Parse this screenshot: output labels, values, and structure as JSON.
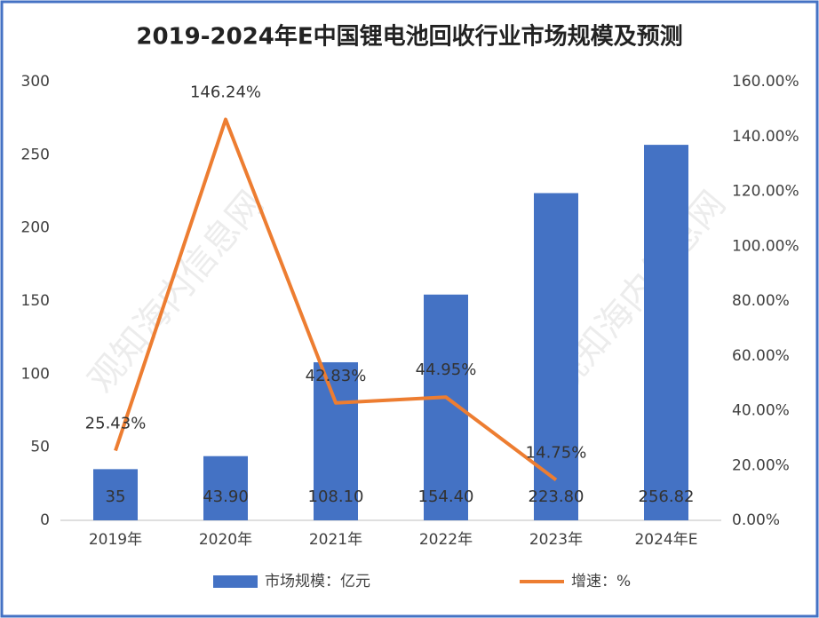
{
  "chart_data": {
    "type": "bar",
    "title": "2019-2024年E中国锂电池回收行业市场规模及预测",
    "watermark": "观知海内信息网",
    "categories": [
      "2019年",
      "2020年",
      "2021年",
      "2022年",
      "2023年",
      "2024年E"
    ],
    "series": [
      {
        "name": "市场规模：亿元",
        "type": "bar",
        "color": "#4472c4",
        "axis": "y",
        "values": [
          35,
          43.9,
          108.1,
          154.4,
          223.8,
          256.82
        ],
        "value_labels": [
          "35",
          "43.90",
          "108.10",
          "154.40",
          "223.80",
          "256.82"
        ]
      },
      {
        "name": "增速：%",
        "type": "line",
        "color": "#ed7d31",
        "axis": "y2",
        "values": [
          25.43,
          146.24,
          42.83,
          44.95,
          14.75,
          null
        ],
        "value_labels": [
          "25.43%",
          "146.24%",
          "42.83%",
          "44.95%",
          "14.75%",
          null
        ]
      }
    ],
    "ylim": [
      0,
      300
    ],
    "yticks": [
      0,
      50,
      100,
      150,
      200,
      250,
      300
    ],
    "y2lim": [
      0,
      160
    ],
    "y2ticks": [
      {
        "value": 0,
        "label": "0.00%"
      },
      {
        "value": 20,
        "label": "20.00%"
      },
      {
        "value": 40,
        "label": "40.00%"
      },
      {
        "value": 60,
        "label": "60.00%"
      },
      {
        "value": 80,
        "label": "80.00%"
      },
      {
        "value": 100,
        "label": "100.00%"
      },
      {
        "value": 120,
        "label": "120.00%"
      },
      {
        "value": 140,
        "label": "140.00%"
      },
      {
        "value": 160,
        "label": "160.00%"
      }
    ],
    "grid": false,
    "legend": "bottom"
  }
}
